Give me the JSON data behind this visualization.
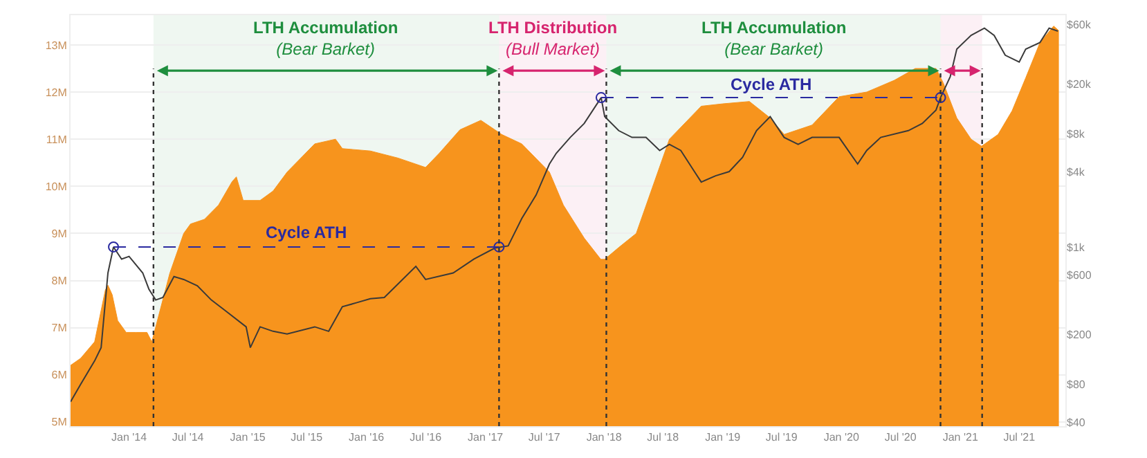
{
  "chart_data": {
    "type": "area",
    "bands": [
      {
        "axis": "x",
        "from": "2014-03-17",
        "to": "2017-02-12",
        "label": "LTH Accumulation\n(Bear Barket)",
        "color": "#1e8e3e"
      },
      {
        "axis": "x",
        "from": "2017-02-12",
        "to": "2018-01-08",
        "label": "LTH Distribution\n(Bull Market)",
        "color": "#d6246e"
      },
      {
        "axis": "x",
        "from": "2018-01-08",
        "to": "2020-11-01",
        "label": "LTH Accumulation\n(Bear Barket)",
        "color": "#1e8e3e"
      },
      {
        "axis": "x",
        "from": "2020-11-01",
        "to": "2021-03-09",
        "label": null,
        "color": "#d6246e"
      }
    ],
    "ref_lines": [
      {
        "axis": "x",
        "value": "2014-03-17",
        "label": null,
        "line_style": "dotted",
        "color": "#333333"
      },
      {
        "axis": "x",
        "value": "2017-02-12",
        "label": null,
        "line_style": "dotted",
        "color": "#333333"
      },
      {
        "axis": "x",
        "value": "2018-01-08",
        "label": null,
        "line_style": "dotted",
        "color": "#333333"
      },
      {
        "axis": "x",
        "value": "2020-11-01",
        "label": null,
        "line_style": "dotted",
        "color": "#333333"
      },
      {
        "axis": "x",
        "value": "2021-03-09",
        "label": null,
        "line_style": "dotted",
        "color": "#333333"
      }
    ],
    "series": [
      {
        "color": "#f7941d",
        "x": [
          "2013-07-05",
          "2013-08-05",
          "2013-09-17",
          "2013-10-20",
          "2013-10-28",
          "2013-11-10",
          "2013-11-27",
          "2013-12-23",
          "2014-01-22",
          "2014-02-25",
          "2014-03-12",
          "2014-05-06",
          "2014-06-18",
          "2014-07-09",
          "2014-08-21",
          "2014-10-03",
          "2014-11-14",
          "2014-11-27",
          "2014-12-18",
          "2015-02-08",
          "2015-03-20",
          "2015-05-02",
          "2015-07-26",
          "2015-09-28",
          "2015-10-19",
          "2016-01-13",
          "2016-04-07",
          "2016-07-01",
          "2016-08-12",
          "2016-10-15",
          "2016-12-18",
          "2017-01-30",
          "2017-02-20",
          "2017-04-23",
          "2017-07-17",
          "2017-08-29",
          "2017-11-01",
          "2017-12-22",
          "2018-01-03",
          "2018-02-15",
          "2018-04-10",
          "2018-07-21",
          "2018-10-27",
          "2019-01-01",
          "2019-03-24",
          "2019-05-27",
          "2019-07-09",
          "2019-10-03",
          "2019-12-25",
          "2020-03-19",
          "2020-06-12",
          "2020-08-15",
          "2020-10-18",
          "2020-11-09",
          "2020-12-21",
          "2021-02-03",
          "2021-03-07",
          "2021-04-27",
          "2021-06-09",
          "2021-07-21",
          "2021-09-03",
          "2021-10-15",
          "2021-10-31"
        ],
        "values": [
          6.2,
          6.35,
          6.7,
          7.8,
          7.9,
          7.7,
          7.15,
          6.9,
          6.9,
          6.9,
          6.7,
          8.15,
          9.0,
          9.2,
          9.3,
          9.6,
          10.1,
          10.2,
          9.7,
          9.7,
          9.9,
          10.3,
          10.9,
          11.0,
          10.8,
          10.75,
          10.6,
          10.4,
          10.7,
          11.2,
          11.4,
          11.2,
          11.1,
          10.9,
          10.3,
          9.6,
          8.9,
          8.45,
          8.45,
          8.7,
          9.0,
          11.0,
          11.7,
          11.75,
          11.8,
          11.45,
          11.1,
          11.3,
          11.9,
          12.0,
          12.25,
          12.5,
          12.5,
          12.2,
          11.45,
          11.0,
          10.85,
          11.1,
          11.6,
          12.3,
          13.05,
          13.4,
          13.3
        ]
      },
      {
        "type": "line",
        "axis": "y2",
        "color": "#3a3a3a",
        "x": [
          "2013-07-05",
          "2013-08-05",
          "2013-09-17",
          "2013-10-07",
          "2013-10-28",
          "2013-11-14",
          "2013-12-09",
          "2014-01-01",
          "2014-02-12",
          "2014-03-03",
          "2014-03-24",
          "2014-04-15",
          "2014-05-19",
          "2014-06-18",
          "2014-07-30",
          "2014-09-11",
          "2014-10-24",
          "2014-12-27",
          "2015-01-09",
          "2015-02-08",
          "2015-03-20",
          "2015-05-02",
          "2015-07-26",
          "2015-09-07",
          "2015-10-19",
          "2015-12-01",
          "2016-01-13",
          "2016-02-25",
          "2016-06-01",
          "2016-07-01",
          "2016-09-24",
          "2016-11-27",
          "2017-01-30",
          "2017-03-12",
          "2017-04-23",
          "2017-06-06",
          "2017-07-17",
          "2017-08-07",
          "2017-09-19",
          "2017-11-01",
          "2017-12-23",
          "2018-01-03",
          "2018-02-15",
          "2018-03-28",
          "2018-05-10",
          "2018-06-21",
          "2018-07-21",
          "2018-08-25",
          "2018-10-06",
          "2018-10-27",
          "2018-12-10",
          "2019-01-21",
          "2019-03-03",
          "2019-04-15",
          "2019-05-27",
          "2019-07-09",
          "2019-08-21",
          "2019-10-03",
          "2019-12-25",
          "2020-02-20",
          "2020-03-19",
          "2020-05-01",
          "2020-07-25",
          "2020-09-06",
          "2020-10-18",
          "2020-11-01",
          "2020-12-01",
          "2020-12-21",
          "2021-02-03",
          "2021-03-16",
          "2021-04-15",
          "2021-05-19",
          "2021-07-01",
          "2021-07-21",
          "2021-09-03",
          "2021-10-01",
          "2021-10-28"
        ],
        "values": [
          58,
          80,
          123,
          157,
          620,
          1000,
          800,
          840,
          620,
          460,
          377,
          395,
          580,
          550,
          490,
          377,
          310,
          230,
          157,
          230,
          212,
          202,
          230,
          212,
          333,
          358,
          386,
          395,
          700,
          550,
          620,
          800,
          980,
          1020,
          1690,
          2600,
          4600,
          5600,
          7500,
          9700,
          15600,
          11000,
          8500,
          7500,
          7500,
          5900,
          6600,
          5900,
          4000,
          3300,
          3700,
          4000,
          5200,
          8500,
          11000,
          7500,
          6600,
          7500,
          7500,
          4600,
          5900,
          7500,
          8500,
          9700,
          12400,
          15600,
          23000,
          38000,
          49000,
          56000,
          49000,
          34000,
          30000,
          38000,
          43000,
          56000,
          53000
        ]
      },
      {
        "name": "Cycle ATH",
        "type": "line",
        "axis": "y2",
        "color": "#2a2aa0",
        "line_style": "dashed",
        "marker": "circle",
        "x": [
          "2013-11-14",
          "2017-02-12"
        ],
        "values": [
          1000,
          1000
        ]
      },
      {
        "name": "Cycle ATH",
        "type": "line",
        "axis": "y2",
        "color": "#2a2aa0",
        "line_style": "dashed",
        "marker": "circle",
        "x": [
          "2017-12-23",
          "2020-11-01"
        ],
        "values": [
          15600,
          15600
        ]
      }
    ],
    "xlim": [
      "2013-07-05",
      "2021-11-20"
    ],
    "xticks": [
      {
        "value": "2014-01-01",
        "label": "Jan '14"
      },
      {
        "value": "2014-07-01",
        "label": "Jul '14"
      },
      {
        "value": "2015-01-01",
        "label": "Jan '15"
      },
      {
        "value": "2015-07-01",
        "label": "Jul '15"
      },
      {
        "value": "2016-01-01",
        "label": "Jan '16"
      },
      {
        "value": "2016-07-01",
        "label": "Jul '16"
      },
      {
        "value": "2017-01-01",
        "label": "Jan '17"
      },
      {
        "value": "2017-07-01",
        "label": "Jul '17"
      },
      {
        "value": "2018-01-01",
        "label": "Jan '18"
      },
      {
        "value": "2018-07-01",
        "label": "Jul '18"
      },
      {
        "value": "2019-01-01",
        "label": "Jan '19"
      },
      {
        "value": "2019-07-01",
        "label": "Jul '19"
      },
      {
        "value": "2020-01-01",
        "label": "Jan '20"
      },
      {
        "value": "2020-07-01",
        "label": "Jul '20"
      },
      {
        "value": "2021-01-01",
        "label": "Jan '21"
      },
      {
        "value": "2021-07-01",
        "label": "Jul '21"
      }
    ],
    "ylim": [
      4.91,
      13.63
    ],
    "yticks": [
      {
        "value": 5,
        "label": "5M"
      },
      {
        "value": 6,
        "label": "6M"
      },
      {
        "value": 7,
        "label": "7M"
      },
      {
        "value": 8,
        "label": "8M"
      },
      {
        "value": 9,
        "label": "9M"
      },
      {
        "value": 10,
        "label": "10M"
      },
      {
        "value": 11,
        "label": "11M"
      },
      {
        "value": 12,
        "label": "12M"
      },
      {
        "value": 13,
        "label": "13M"
      }
    ],
    "log": "y2",
    "y2lim": [
      37,
      71000
    ],
    "y2ticks": [
      {
        "value": 40,
        "label": "$40"
      },
      {
        "value": 80,
        "label": "$80"
      },
      {
        "value": 200,
        "label": "$200"
      },
      {
        "value": 600,
        "label": "$600"
      },
      {
        "value": 1000,
        "label": "$1k"
      },
      {
        "value": 4000,
        "label": "$4k"
      },
      {
        "value": 8000,
        "label": "$8k"
      },
      {
        "value": 20000,
        "label": "$20k"
      },
      {
        "value": 60000,
        "label": "$60k"
      }
    ],
    "grid": "y",
    "legend": false
  }
}
